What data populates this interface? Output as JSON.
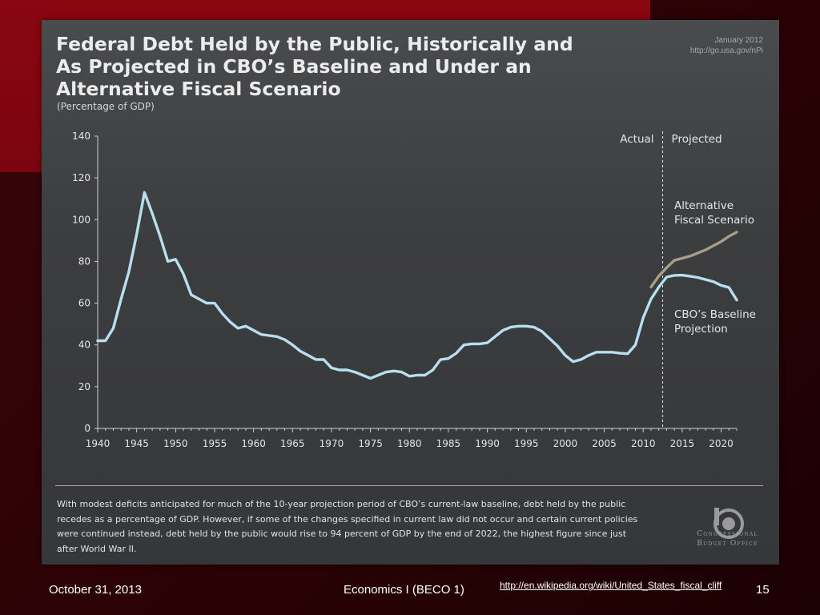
{
  "slide": {
    "date": "October 31, 2013",
    "course": "Economics I (BECO 1)",
    "page_number": "15",
    "link": "http://en.wikipedia.org/wiki/United_States_fiscal_cliff"
  },
  "figure": {
    "title_lines": [
      "Federal Debt Held by the Public, Historically and",
      "As Projected in CBO’s Baseline and Under an",
      "Alternative Fiscal Scenario"
    ],
    "subtitle": "(Percentage of GDP)",
    "source_date": "January 2012",
    "source_url": "http://go.usa.gov/nPi",
    "caption_lines": [
      "With modest deficits anticipated for much of the 10-year projection period of CBO’s current-law baseline, debt held by the public",
      "recedes as a percentage of GDP. However, if some of the changes specified in current law did not occur and certain current policies",
      "were continued instead, debt held by the public would rise to 94 percent of GDP by the end of 2022, the highest figure since just",
      "after World War II."
    ],
    "logo_text_lines": [
      "Congressional",
      "Budget Office"
    ]
  },
  "colors": {
    "baseline": "#b7dff0",
    "alternative": "#a79d8b",
    "text": "#e6e6e6",
    "axis": "#cfcfcf"
  },
  "chart_data": {
    "type": "line",
    "ylim": [
      0,
      140
    ],
    "xlim": [
      1940,
      2022
    ],
    "yticks": [
      0,
      20,
      40,
      60,
      80,
      100,
      120,
      140
    ],
    "xticks": [
      1940,
      1945,
      1950,
      1955,
      1960,
      1965,
      1970,
      1975,
      1980,
      1985,
      1990,
      1995,
      2000,
      2005,
      2010,
      2015,
      2020
    ],
    "divider_year": 2012,
    "region_labels": {
      "left": "Actual",
      "right": "Projected"
    },
    "grid": false,
    "series": [
      {
        "name": "CBO’s Baseline Projection",
        "label_lines": [
          "CBO’s Baseline",
          "Projection"
        ],
        "color_key": "baseline",
        "x": [
          1940,
          1941,
          1942,
          1943,
          1944,
          1945,
          1946,
          1947,
          1948,
          1949,
          1950,
          1951,
          1952,
          1953,
          1954,
          1955,
          1956,
          1957,
          1958,
          1959,
          1960,
          1961,
          1962,
          1963,
          1964,
          1965,
          1966,
          1967,
          1968,
          1969,
          1970,
          1971,
          1972,
          1973,
          1974,
          1975,
          1976,
          1977,
          1978,
          1979,
          1980,
          1981,
          1982,
          1983,
          1984,
          1985,
          1986,
          1987,
          1988,
          1989,
          1990,
          1991,
          1992,
          1993,
          1994,
          1995,
          1996,
          1997,
          1998,
          1999,
          2000,
          2001,
          2002,
          2003,
          2004,
          2005,
          2006,
          2007,
          2008,
          2009,
          2010,
          2011,
          2012,
          2013,
          2014,
          2015,
          2016,
          2017,
          2018,
          2019,
          2020,
          2021,
          2022
        ],
        "values": [
          42,
          42,
          48,
          62,
          75,
          93,
          113,
          103,
          92,
          80,
          81,
          74,
          64,
          62,
          60,
          60,
          55,
          51,
          48,
          49,
          47,
          45,
          44.5,
          44,
          42.5,
          40,
          37,
          35,
          33,
          33,
          29,
          28,
          28,
          27,
          25.5,
          24,
          25.5,
          27,
          27.5,
          27,
          25,
          25.5,
          25.5,
          28,
          33,
          33.5,
          36,
          40,
          40.5,
          40.5,
          41,
          44,
          47,
          48.5,
          49,
          49,
          48.5,
          46.5,
          43,
          39.5,
          35,
          32,
          33,
          35,
          36.5,
          36.5,
          36.5,
          36,
          35.8,
          40,
          53,
          62,
          67.7,
          72.5,
          73.3,
          73.4,
          72.9,
          72.3,
          71.3,
          70.3,
          68.5,
          67.5,
          61.5
        ],
        "values_note": ""
      },
      {
        "name": "Alternative Fiscal Scenario",
        "label_lines": [
          "Alternative",
          "Fiscal Scenario"
        ],
        "color_key": "alternative",
        "x": [
          2011,
          2012,
          2013,
          2014,
          2015,
          2016,
          2017,
          2018,
          2019,
          2020,
          2021,
          2022
        ],
        "values": [
          67.7,
          73,
          77,
          80.5,
          81.5,
          82.5,
          84,
          85.5,
          87.5,
          89.5,
          92,
          94
        ]
      }
    ]
  }
}
